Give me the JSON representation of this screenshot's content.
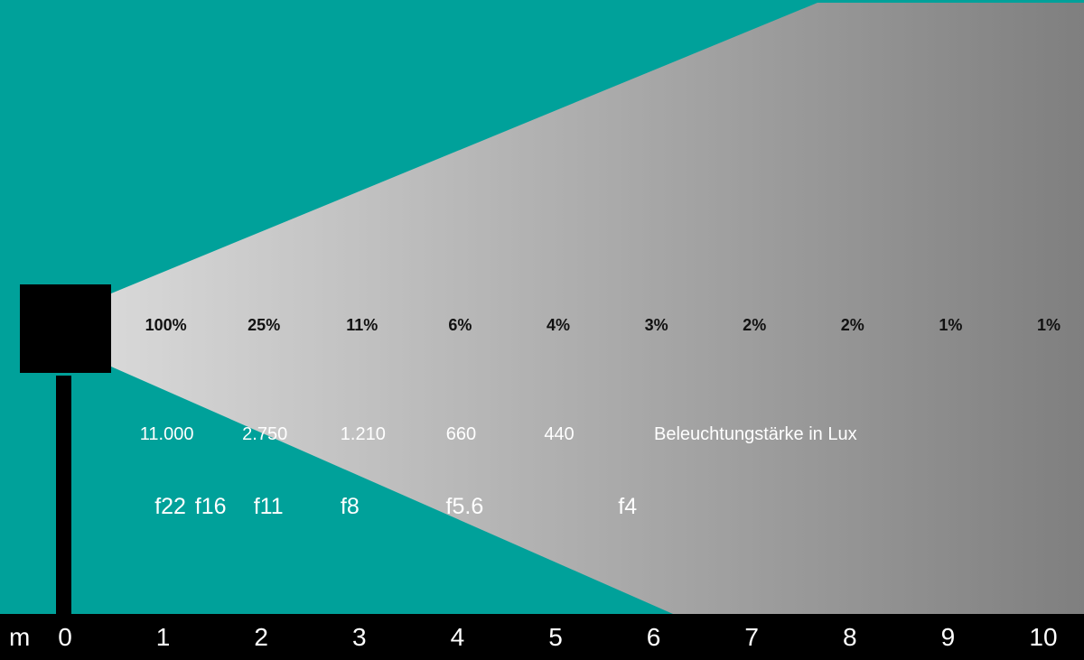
{
  "colors": {
    "background": "#00a19a",
    "beam_light": "#d8d8d8",
    "beam_dark": "#7f7f7f",
    "lamp": "#000000",
    "axis_bar": "#000000"
  },
  "distance_unit": "m",
  "distance_ticks": [
    "0",
    "1",
    "2",
    "3",
    "4",
    "5",
    "6",
    "7",
    "8",
    "9",
    "10"
  ],
  "percentages": [
    "100%",
    "25%",
    "11%",
    "6%",
    "4%",
    "3%",
    "2%",
    "2%",
    "1%",
    "1%"
  ],
  "lux_values": [
    "11.000",
    "2.750",
    "1.210",
    "660",
    "440"
  ],
  "lux_caption": "Beleuchtungstärke in Lux",
  "f_stops": [
    {
      "label": "f22",
      "distance": 1
    },
    {
      "label": "f16",
      "distance": 1.41
    },
    {
      "label": "f11",
      "distance": 2
    },
    {
      "label": "f8",
      "distance": 2.83
    },
    {
      "label": "f5.6",
      "distance": 4
    },
    {
      "label": "f4",
      "distance": 5.66
    }
  ]
}
